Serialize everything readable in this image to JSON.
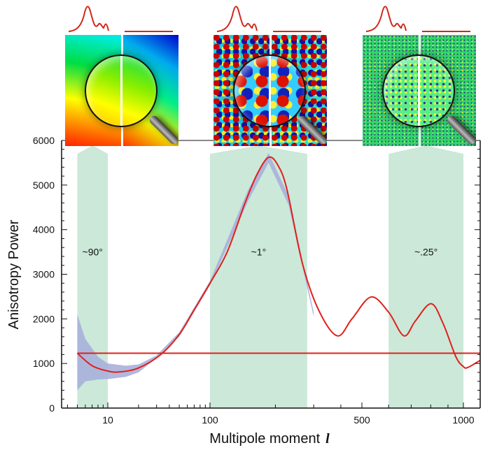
{
  "chart_data": {
    "type": "line",
    "xlabel": "Multipole moment",
    "xlabel_symbol": "l",
    "ylabel": "Anisotropy Power",
    "x_scale": "log",
    "xlim": [
      3.5,
      1120
    ],
    "ylim": [
      0,
      6000
    ],
    "x_ticks": [
      10,
      100,
      500,
      1000
    ],
    "x_tick_labels": [
      "10",
      "100",
      "500",
      "1000"
    ],
    "y_ticks": [
      0,
      1000,
      2000,
      3000,
      4000,
      5000,
      6000
    ],
    "y_tick_labels": [
      "0",
      "1000",
      "2000",
      "3000",
      "4000",
      "5000",
      "6000"
    ],
    "grid": false,
    "series": [
      {
        "type": "line",
        "color": "#e0201a",
        "x": [
          5,
          7,
          10,
          13,
          20,
          33,
          50,
          70,
          100,
          120,
          145,
          165,
          186,
          205,
          226,
          266,
          316,
          385,
          450,
          532,
          600,
          666,
          720,
          802,
          870,
          950,
          1000,
          1030,
          1120
        ],
        "y": [
          1230,
          950,
          830,
          810,
          900,
          1200,
          1650,
          2200,
          2800,
          3500,
          4600,
          5250,
          5620,
          5450,
          4900,
          3250,
          2200,
          1620,
          2000,
          2490,
          2150,
          1620,
          1950,
          2340,
          1900,
          1150,
          930,
          910,
          1070
        ]
      },
      {
        "type": "hline",
        "color": "#e0201a",
        "x": [
          5,
          1120
        ],
        "y": [
          1230,
          1230
        ]
      }
    ],
    "error_band": {
      "color": "#a9b0da",
      "x": [
        5,
        6,
        8,
        10,
        15,
        20,
        30,
        50,
        100,
        150,
        186,
        230,
        300
      ],
      "upper": [
        2100,
        1550,
        1150,
        1000,
        950,
        980,
        1180,
        1700,
        2850,
        4900,
        5720,
        4750,
        2150
      ],
      "lower": [
        400,
        600,
        640,
        650,
        700,
        800,
        1120,
        1600,
        2750,
        4650,
        5500,
        4550,
        2050
      ]
    },
    "shaded_regions": [
      {
        "x": [
          5,
          10
        ],
        "label": "~90°",
        "color": "#cbe8d9"
      },
      {
        "x": [
          100,
          280
        ],
        "label": "~1°",
        "color": "#cbe8d9"
      },
      {
        "x": [
          600,
          1000
        ],
        "label": "~.25°",
        "color": "#cbe8d9"
      }
    ]
  },
  "insets": [
    {
      "name": "large-scale-map",
      "icon": "magnifier-icon"
    },
    {
      "name": "degree-scale-map",
      "icon": "magnifier-icon"
    },
    {
      "name": "small-scale-map",
      "icon": "magnifier-icon"
    }
  ]
}
